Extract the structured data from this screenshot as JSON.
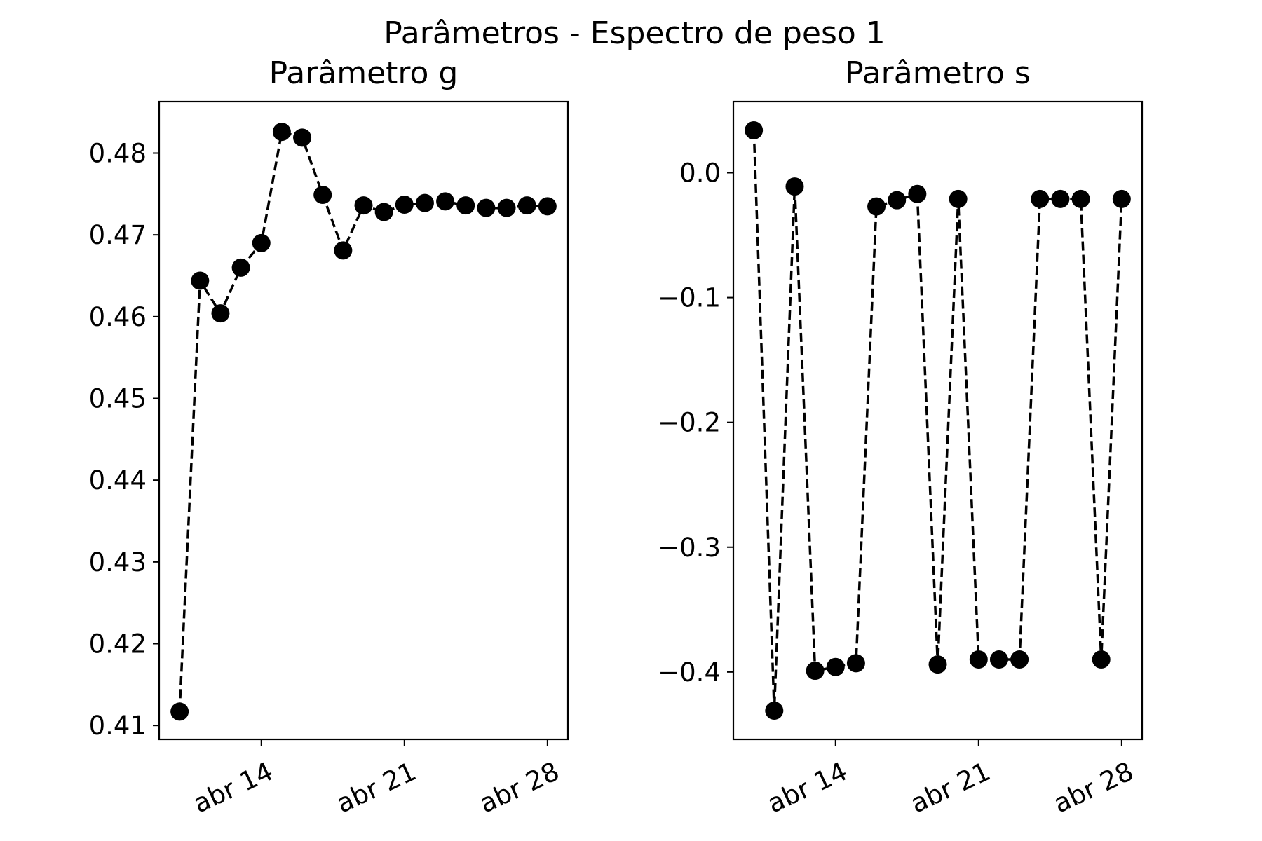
{
  "figure": {
    "title": "Parâmetros - Espectro de peso 1"
  },
  "chart_data": [
    {
      "type": "line",
      "title": "Parâmetro g",
      "xlabel": "",
      "ylabel": "",
      "x": [
        "2024-04-10",
        "2024-04-11",
        "2024-04-12",
        "2024-04-13",
        "2024-04-14",
        "2024-04-15",
        "2024-04-16",
        "2024-04-17",
        "2024-04-18",
        "2024-04-19",
        "2024-04-20",
        "2024-04-21",
        "2024-04-22",
        "2024-04-23",
        "2024-04-24",
        "2024-04-25",
        "2024-04-26",
        "2024-04-27",
        "2024-04-28"
      ],
      "series": [
        {
          "values": [
            0.4117,
            0.4644,
            0.4604,
            0.466,
            0.469,
            0.4826,
            0.4819,
            0.4749,
            0.4681,
            0.4736,
            0.4728,
            0.4737,
            0.4739,
            0.4741,
            0.4736,
            0.4733,
            0.4733,
            0.4736,
            0.4735
          ]
        }
      ],
      "xlim": [
        "2024-04-09",
        "2024-04-29"
      ],
      "ylim": [
        0.4083,
        0.4863
      ],
      "xticks": [
        {
          "x": "2024-04-14",
          "label": "abr 14"
        },
        {
          "x": "2024-04-21",
          "label": "abr 21"
        },
        {
          "x": "2024-04-28",
          "label": "abr 28"
        }
      ],
      "yticks": [
        "0.41",
        "0.42",
        "0.43",
        "0.44",
        "0.45",
        "0.46",
        "0.47",
        "0.48"
      ],
      "line_style": "dashed",
      "marker": "circle",
      "color": "#000000",
      "grid": false
    },
    {
      "type": "line",
      "title": "Parâmetro s",
      "xlabel": "",
      "ylabel": "",
      "x": [
        "2024-04-10",
        "2024-04-11",
        "2024-04-12",
        "2024-04-13",
        "2024-04-14",
        "2024-04-15",
        "2024-04-16",
        "2024-04-17",
        "2024-04-18",
        "2024-04-19",
        "2024-04-20",
        "2024-04-21",
        "2024-04-22",
        "2024-04-23",
        "2024-04-24",
        "2024-04-25",
        "2024-04-26",
        "2024-04-27",
        "2024-04-28"
      ],
      "series": [
        {
          "values": [
            0.034,
            -0.431,
            -0.011,
            -0.399,
            -0.396,
            -0.393,
            -0.027,
            -0.022,
            -0.017,
            -0.394,
            -0.021,
            -0.39,
            -0.39,
            -0.39,
            -0.021,
            -0.021,
            -0.021,
            -0.39,
            -0.021
          ]
        }
      ],
      "xlim": [
        "2024-04-09",
        "2024-04-29"
      ],
      "ylim": [
        -0.454,
        0.057
      ],
      "xticks": [
        {
          "x": "2024-04-14",
          "label": "abr 14"
        },
        {
          "x": "2024-04-21",
          "label": "abr 21"
        },
        {
          "x": "2024-04-28",
          "label": "abr 28"
        }
      ],
      "yticks": [
        "0.0",
        "−0.1",
        "−0.2",
        "−0.3",
        "−0.4"
      ],
      "line_style": "dashed",
      "marker": "circle",
      "color": "#000000",
      "grid": false
    }
  ]
}
